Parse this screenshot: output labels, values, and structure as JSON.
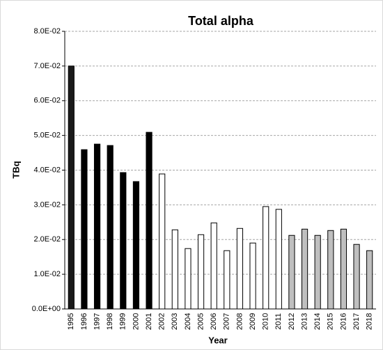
{
  "chart_data": {
    "type": "bar",
    "title": "Total alpha",
    "x_label": "Year",
    "y_label": "TBq",
    "categories": [
      "1995",
      "1996",
      "1997",
      "1998",
      "1999",
      "2000",
      "2001",
      "2002",
      "2003",
      "2004",
      "2005",
      "2006",
      "2007",
      "2008",
      "2009",
      "2010",
      "2011",
      "2012",
      "2013",
      "2014",
      "2015",
      "2016",
      "2017",
      "2018"
    ],
    "values": [
      0.07,
      0.0459,
      0.0475,
      0.0471,
      0.0393,
      0.0367,
      0.0509,
      0.0389,
      0.0228,
      0.0174,
      0.0214,
      0.0248,
      0.0168,
      0.0232,
      0.019,
      0.0295,
      0.0287,
      0.0212,
      0.023,
      0.0212,
      0.0226,
      0.023,
      0.0186,
      0.0168
    ],
    "colors": [
      "#1a1a1a",
      "#000000",
      "#000000",
      "#000000",
      "#000000",
      "#000000",
      "#000000",
      "#ffffff",
      "#ffffff",
      "#ffffff",
      "#ffffff",
      "#ffffff",
      "#ffffff",
      "#ffffff",
      "#ffffff",
      "#ffffff",
      "#ffffff",
      "#bfbfbf",
      "#bfbfbf",
      "#bfbfbf",
      "#bfbfbf",
      "#bfbfbf",
      "#bfbfbf",
      "#bfbfbf"
    ],
    "ylim": [
      0,
      0.08
    ],
    "yticks": [
      {
        "value": 0,
        "label": "0.0E+00"
      },
      {
        "value": 0.01,
        "label": "1.0E-02"
      },
      {
        "value": 0.02,
        "label": "2.0E-02"
      },
      {
        "value": 0.03,
        "label": "3.0E-02"
      },
      {
        "value": 0.04,
        "label": "4.0E-02"
      },
      {
        "value": 0.05,
        "label": "5.0E-02"
      },
      {
        "value": 0.06,
        "label": "6.0E-02"
      },
      {
        "value": 0.07,
        "label": "7.0E-02"
      },
      {
        "value": 0.08,
        "label": "8.0E-02"
      }
    ],
    "grid": true
  }
}
